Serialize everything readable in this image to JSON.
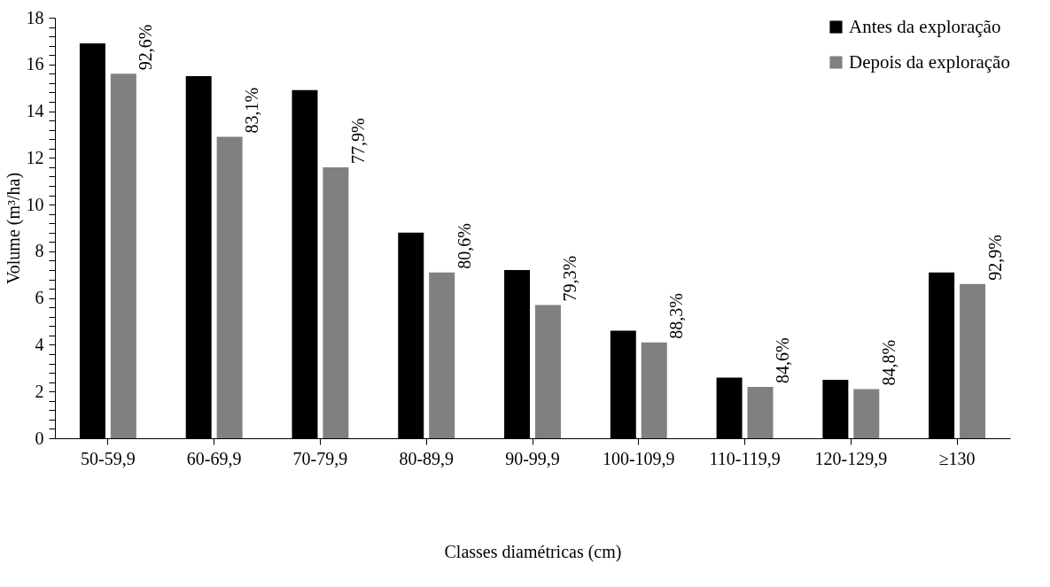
{
  "chart_data": {
    "type": "bar",
    "xlabel": "Classes diamétricas (cm)",
    "ylabel": "Volume (m³/ha)",
    "categories": [
      "50-59,9",
      "60-69,9",
      "70-79,9",
      "80-89,9",
      "90-99,9",
      "100-109,9",
      "110-119,9",
      "120-129,9",
      "≥130"
    ],
    "series": [
      {
        "name": "Antes da exploração",
        "color": "#000000",
        "values": [
          16.9,
          15.5,
          14.9,
          8.8,
          7.2,
          4.6,
          2.6,
          2.5,
          7.1
        ]
      },
      {
        "name": "Depois da exploração",
        "color": "#808080",
        "values": [
          15.6,
          12.9,
          11.6,
          7.1,
          5.7,
          4.1,
          2.2,
          2.1,
          6.6
        ]
      }
    ],
    "annotations": [
      {
        "text": "92,6%",
        "x": "50-59,9",
        "y": 15.6
      },
      {
        "text": "83,1%",
        "x": "60-69,9",
        "y": 12.9
      },
      {
        "text": "77,9%",
        "x": "70-79,9",
        "y": 11.6
      },
      {
        "text": "80,6%",
        "x": "80-89,9",
        "y": 7.1
      },
      {
        "text": "79,3%",
        "x": "90-99,9",
        "y": 5.7
      },
      {
        "text": "88,3%",
        "x": "100-109,9",
        "y": 4.1
      },
      {
        "text": "84,6%",
        "x": "110-119,9",
        "y": 2.2
      },
      {
        "text": "84,8%",
        "x": "120-129,9",
        "y": 2.1
      },
      {
        "text": "92,9%",
        "x": "≥130",
        "y": 6.6
      }
    ],
    "ylim": [
      0,
      18
    ],
    "yticks": [
      0,
      {
        "value": 0.4,
        "label": null
      },
      {
        "value": 0.8,
        "label": null
      },
      {
        "value": 1.2,
        "label": null
      },
      {
        "value": 1.6,
        "label": null
      },
      2,
      {
        "value": 2.4,
        "label": null
      },
      {
        "value": 2.8,
        "label": null
      },
      {
        "value": 3.2,
        "label": null
      },
      {
        "value": 3.6,
        "label": null
      },
      4,
      {
        "value": 4.4,
        "label": null
      },
      {
        "value": 4.8,
        "label": null
      },
      {
        "value": 5.2,
        "label": null
      },
      {
        "value": 5.6,
        "label": null
      },
      6,
      {
        "value": 6.4,
        "label": null
      },
      {
        "value": 6.8,
        "label": null
      },
      {
        "value": 7.2,
        "label": null
      },
      {
        "value": 7.6,
        "label": null
      },
      8,
      {
        "value": 8.4,
        "label": null
      },
      {
        "value": 8.8,
        "label": null
      },
      {
        "value": 9.2,
        "label": null
      },
      {
        "value": 9.6,
        "label": null
      },
      10,
      {
        "value": 10.4,
        "label": null
      },
      {
        "value": 10.8,
        "label": null
      },
      {
        "value": 11.2,
        "label": null
      },
      {
        "value": 11.6,
        "label": null
      },
      12,
      {
        "value": 12.4,
        "label": null
      },
      {
        "value": 12.8,
        "label": null
      },
      {
        "value": 13.2,
        "label": null
      },
      {
        "value": 13.6,
        "label": null
      },
      14,
      {
        "value": 14.4,
        "label": null
      },
      {
        "value": 14.8,
        "label": null
      },
      {
        "value": 15.2,
        "label": null
      },
      {
        "value": 15.6,
        "label": null
      },
      16,
      {
        "value": 16.4,
        "label": null
      },
      {
        "value": 16.8,
        "label": null
      },
      {
        "value": 17.2,
        "label": null
      },
      {
        "value": 17.6,
        "label": null
      },
      18
    ],
    "legend": "top right",
    "grid": false
  }
}
